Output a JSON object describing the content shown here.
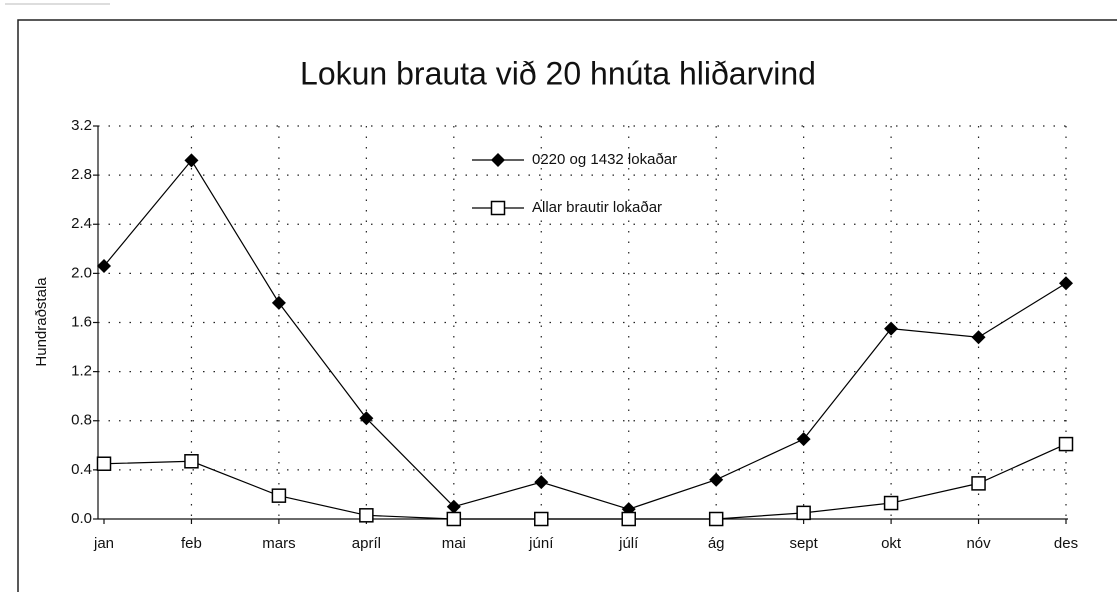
{
  "chart_data": {
    "type": "line",
    "title": "Lokun brauta við 20 hnúta hliðarvind",
    "y_label": "Hundraðstala",
    "categories": [
      "jan",
      "feb",
      "mars",
      "apríl",
      "mai",
      "júní",
      "júlí",
      "ág",
      "sept",
      "okt",
      "nóv",
      "des"
    ],
    "series": [
      {
        "name": "0220 og 1432 lokaðar",
        "color": "#000000",
        "marker": "diamond",
        "values": [
          2.06,
          2.92,
          1.76,
          0.82,
          0.1,
          0.3,
          0.08,
          0.32,
          0.65,
          1.55,
          1.48,
          1.92
        ]
      },
      {
        "name": "Allar brautir lokaðar",
        "color": "#000000",
        "marker": "square",
        "values": [
          0.45,
          0.47,
          0.19,
          0.03,
          0.0,
          0.0,
          0.0,
          0.0,
          0.05,
          0.13,
          0.29,
          0.61
        ]
      }
    ],
    "ylim": [
      0,
      3.2
    ],
    "yticks": [
      {
        "value": 0,
        "label": "0.0"
      },
      0.4,
      0.8,
      1.2,
      1.6,
      {
        "value": 2,
        "label": "2.0"
      },
      2.4,
      2.8,
      3.2
    ],
    "grid": true,
    "legend": "top"
  }
}
